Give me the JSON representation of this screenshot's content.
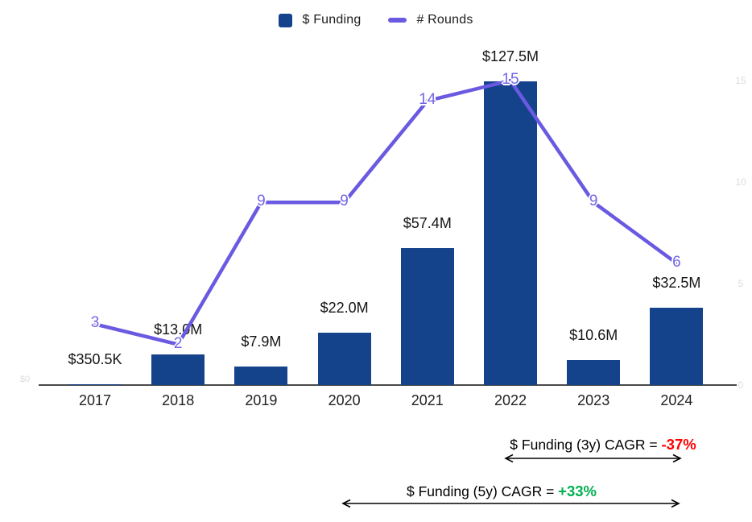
{
  "legend": {
    "funding_label": "$ Funding",
    "rounds_label": "# Rounds"
  },
  "colors": {
    "bar": "#14428B",
    "line": "#6A5AE1",
    "point_label": "#7265E6",
    "negative": "#FF0000",
    "positive": "#00B050",
    "axis": "#4A4A4A",
    "faint_tick": "#DCDCDC"
  },
  "chart_data": {
    "type": "bar",
    "subtype": "combo bar + line, dual axis",
    "categories": [
      "2017",
      "2018",
      "2019",
      "2020",
      "2021",
      "2022",
      "2023",
      "2024"
    ],
    "series": [
      {
        "name": "$ Funding",
        "type": "bar",
        "axis": "left",
        "values_millions_usd": [
          0.3505,
          13.0,
          7.9,
          22.0,
          57.4,
          127.5,
          10.6,
          32.5
        ],
        "labels": [
          "$350.5K",
          "$13.0M",
          "$7.9M",
          "$22.0M",
          "$57.4M",
          "$127.5M",
          "$10.6M",
          "$32.5M"
        ]
      },
      {
        "name": "# Rounds",
        "type": "line",
        "axis": "right",
        "values": [
          3,
          2,
          9,
          9,
          14,
          15,
          9,
          6
        ]
      }
    ],
    "left_axis_ticks": [
      "$0"
    ],
    "right_axis_ticks": [
      15,
      10,
      5,
      0
    ],
    "right_axis_range": [
      0,
      15
    ],
    "left_axis_range_millions": [
      0,
      127.5
    ],
    "grid": false,
    "legend_position": "top-center"
  },
  "annotations": [
    {
      "prefix": "$ Funding (3y) CAGR = ",
      "value": "-37%",
      "sentiment": "negative",
      "span_years": [
        "2022",
        "2024"
      ]
    },
    {
      "prefix": "$ Funding (5y) CAGR = ",
      "value": "+33%",
      "sentiment": "positive",
      "span_years": [
        "2020",
        "2024"
      ]
    }
  ]
}
